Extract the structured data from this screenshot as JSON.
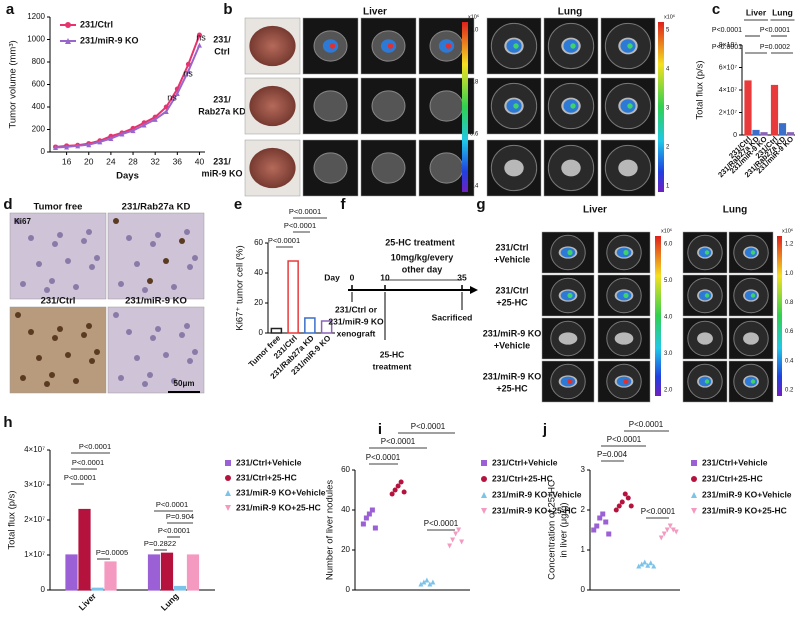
{
  "panel_labels": [
    "a",
    "b",
    "c",
    "d",
    "e",
    "f",
    "g",
    "h",
    "i",
    "j"
  ],
  "chart_data": [
    {
      "type": "line",
      "xlabel": "Days",
      "ylabel": "Tumor volume (mm³)",
      "x": [
        14,
        16,
        18,
        20,
        22,
        24,
        26,
        28,
        30,
        32,
        34,
        36,
        38,
        40
      ],
      "xlim": [
        13,
        41
      ],
      "xticks": [
        16,
        20,
        24,
        28,
        32,
        36,
        40
      ],
      "ylim": [
        0,
        1200
      ],
      "yticks": [
        0,
        200,
        400,
        600,
        800,
        1000,
        1200
      ],
      "series": [
        {
          "name": "231/Ctrl",
          "color": "#e8336e",
          "values": [
            45,
            55,
            60,
            75,
            100,
            140,
            170,
            210,
            260,
            310,
            400,
            560,
            780,
            1040
          ]
        },
        {
          "name": "231/miR-9 KO",
          "color": "#9966cc",
          "values": [
            40,
            45,
            55,
            65,
            90,
            120,
            160,
            190,
            240,
            290,
            360,
            520,
            720,
            950
          ]
        }
      ],
      "annotations": [
        "ns",
        "ns",
        "ns"
      ]
    },
    {
      "type": "bar",
      "ylabel": "Total flux (p/s)",
      "categories": [
        "Liver",
        "Lung"
      ],
      "ylim": [
        0,
        80000000
      ],
      "yticks": [
        0,
        {
          "value": 20000000,
          "label": "2×10⁷"
        },
        {
          "value": 40000000,
          "label": "4×10⁷"
        },
        {
          "value": 60000000,
          "label": "6×10⁷"
        },
        {
          "value": 80000000,
          "label": "8×10⁷"
        }
      ],
      "series": [
        {
          "name": "231/Ctrl",
          "color": "#e83a3a",
          "values": [
            48000000,
            44000000
          ]
        },
        {
          "name": "231/Rab27a KD",
          "color": "#3b6fc9",
          "values": [
            4000000,
            10000000
          ]
        },
        {
          "name": "231/miR-9 KO",
          "color": "#8a63b8",
          "values": [
            2000000,
            2000000
          ]
        }
      ],
      "annotations": [
        "P<0.0001",
        "P<0.0001",
        "P<0.0001",
        "P=0.0002"
      ]
    },
    {
      "type": "bar",
      "ylabel": "Ki67⁺ tumor cell (%)",
      "categories": [
        "Tumor free",
        "231/Ctrl",
        "231/Rab27a KD",
        "231/miR-9 KO"
      ],
      "values": [
        3,
        48,
        10,
        8
      ],
      "colors": [
        "#222222",
        "#e83a3a",
        "#3b6fc9",
        "#8a63b8"
      ],
      "ylim": [
        0,
        60
      ],
      "yticks": [
        0,
        20,
        40,
        60
      ],
      "annotations": [
        "P<0.0001",
        "P<0.0001",
        "P<0.0001"
      ]
    },
    {
      "type": "bar",
      "ylabel": "Total flux (p/s)",
      "categories": [
        "Liver",
        "Lung"
      ],
      "ylim": [
        0,
        40000000
      ],
      "yticks": [
        0,
        {
          "value": 10000000,
          "label": "1×10⁷"
        },
        {
          "value": 20000000,
          "label": "2×10⁷"
        },
        {
          "value": 30000000,
          "label": "3×10⁷"
        },
        {
          "value": 40000000,
          "label": "4×10⁷"
        }
      ],
      "series": [
        {
          "name": "231/Ctrl+Vehicle",
          "color": "#9b5fd6",
          "values": [
            10000000,
            10000000
          ]
        },
        {
          "name": "231/Ctrl+25-HC",
          "color": "#b5123e",
          "values": [
            23000000,
            10500000
          ]
        },
        {
          "name": "231/miR-9 KO+Vehicle",
          "color": "#7cc3ea",
          "values": [
            500000,
            1000000
          ]
        },
        {
          "name": "231/miR-9 KO+25-HC",
          "color": "#f49ac1",
          "values": [
            8000000,
            10000000
          ]
        }
      ],
      "annotations": [
        "P<0.0001",
        "P<0.0001",
        "P<0.0001",
        "P=0.0005",
        "P<0.0001",
        "P=0.904",
        "P<0.0001",
        "P=0.2822"
      ]
    },
    {
      "type": "dot",
      "ylabel": "Number of liver nodules",
      "ylim": [
        0,
        60
      ],
      "yticks": [
        0,
        20,
        40,
        60
      ],
      "series": [
        {
          "name": "231/Ctrl+Vehicle",
          "color": "#9b5fd6",
          "values": [
            33,
            36,
            38,
            40,
            31
          ]
        },
        {
          "name": "231/Ctrl+25-HC",
          "color": "#b5123e",
          "values": [
            48,
            50,
            52,
            54,
            49
          ]
        },
        {
          "name": "231/miR-9 KO+Vehicle",
          "color": "#7cc3ea",
          "values": [
            3,
            4,
            5,
            3,
            4
          ]
        },
        {
          "name": "231/miR-9 KO+25-HC",
          "color": "#f49ac1",
          "values": [
            22,
            25,
            28,
            30,
            24
          ]
        }
      ],
      "annotations": [
        "P<0.0001",
        "P<0.0001",
        "P<0.0001",
        "P<0.0001"
      ]
    },
    {
      "type": "dot",
      "ylabel": [
        "Concentration of 25-HC",
        "in liver (μg/g)"
      ],
      "ylim": [
        0,
        3
      ],
      "yticks": [
        0,
        1,
        2,
        3
      ],
      "series": [
        {
          "name": "231/Ctrl+Vehicle",
          "color": "#9b5fd6",
          "values": [
            1.5,
            1.6,
            1.8,
            1.9,
            1.7,
            1.4
          ]
        },
        {
          "name": "231/Ctrl+25-HC",
          "color": "#b5123e",
          "values": [
            2.0,
            2.1,
            2.2,
            2.4,
            2.3,
            2.1
          ]
        },
        {
          "name": "231/miR-9 KO+Vehicle",
          "color": "#7cc3ea",
          "values": [
            0.6,
            0.65,
            0.7,
            0.62,
            0.68,
            0.6
          ]
        },
        {
          "name": "231/miR-9 KO+25-HC",
          "color": "#f49ac1",
          "values": [
            1.3,
            1.4,
            1.5,
            1.6,
            1.5,
            1.45
          ]
        }
      ],
      "annotations": [
        "P=0.004",
        "P<0.0001",
        "P<0.0001",
        "P<0.0001"
      ]
    }
  ],
  "panel_b": {
    "tissues": [
      "Liver",
      "Lung"
    ],
    "rows": [
      [
        "231/",
        "Ctrl"
      ],
      [
        "231/",
        "Rab27a KD"
      ],
      [
        "231/",
        "miR-9 KO"
      ]
    ],
    "liver_scale": {
      "unit": "x10⁶",
      "labels": [
        "1.0",
        "0.8",
        "0.6",
        "0.4"
      ]
    },
    "lung_scale": {
      "unit": "x10⁶",
      "labels": [
        "5",
        "4",
        "3",
        "2",
        "1"
      ]
    }
  },
  "panel_d": {
    "labels": [
      "Tumor free",
      "231/Rab27a KD",
      "231/Ctrl",
      "231/miR-9 KO"
    ],
    "stain": "Ki67",
    "scale_bar": "50μm"
  },
  "panel_f": {
    "day_label": "Day",
    "days": [
      "0",
      "10",
      "35"
    ],
    "treatment": "25-HC treatment",
    "dose": [
      "10mg/kg/every",
      "other day"
    ],
    "groups": [
      "231/Ctrl or",
      "231/miR-9 KO",
      "xenograft"
    ],
    "lower_treatment": [
      "25-HC",
      "treatment"
    ],
    "end": "Sacrificed"
  },
  "panel_g": {
    "tissues": [
      "Liver",
      "Lung"
    ],
    "rows": [
      [
        "231/Ctrl",
        "+Vehicle"
      ],
      [
        "231/Ctrl",
        "+25-HC"
      ],
      [
        "231/miR-9 KO",
        "+Vehicle"
      ],
      [
        "231/miR-9 KO",
        "+25-HC"
      ]
    ],
    "liver_scale": {
      "unit": "x10⁶",
      "labels": [
        "6.0",
        "5.0",
        "4.0",
        "3.0",
        "2.0"
      ]
    },
    "lung_scale": {
      "unit": "x10⁶",
      "labels": [
        "1.2",
        "1.0",
        "0.8",
        "0.6",
        "0.4",
        "0.2"
      ]
    }
  }
}
